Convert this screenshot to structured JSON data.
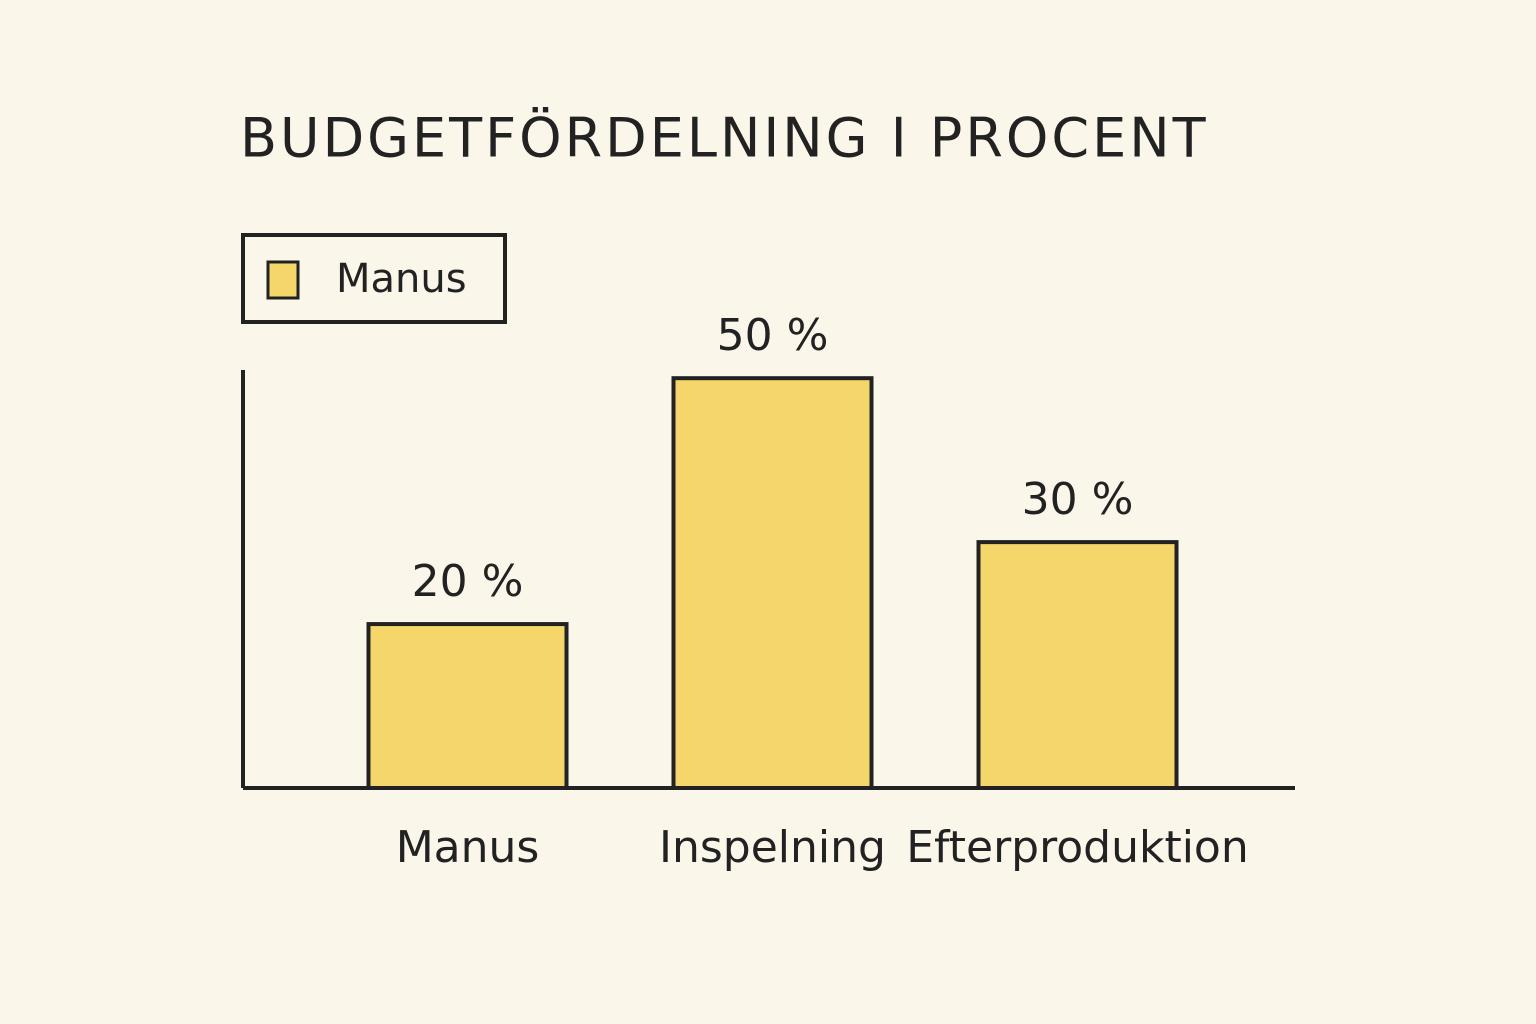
{
  "chart_data": {
    "type": "bar",
    "title": "BUDGETFÖRDELNING I PROCENT",
    "categories": [
      "Manus",
      "Inspelning",
      "Efterproduktion"
    ],
    "series": [
      {
        "name": "Manus",
        "color": "#f5d66a",
        "values": [
          20,
          50,
          30
        ],
        "value_labels": [
          "20 %",
          "50 %",
          "30 %"
        ]
      }
    ],
    "ylim": [
      0,
      51
    ],
    "legend": "top-left",
    "grid": false
  }
}
